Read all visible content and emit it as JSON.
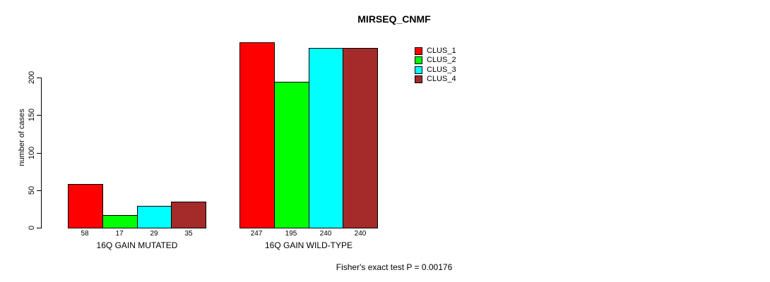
{
  "chart_data": {
    "type": "bar",
    "title": "MIRSEQ_CNMF",
    "ylabel": "number of cases",
    "ylim": [
      0,
      260
    ],
    "yticks": [
      0,
      50,
      100,
      150,
      200
    ],
    "grid": false,
    "legend_position": "top-right-outside",
    "categories": [
      "16Q GAIN MUTATED",
      "16Q GAIN WILD-TYPE"
    ],
    "series": [
      {
        "name": "CLUS_1",
        "color": "#FF0000",
        "values": [
          58,
          247
        ]
      },
      {
        "name": "CLUS_2",
        "color": "#00FF00",
        "values": [
          17,
          195
        ]
      },
      {
        "name": "CLUS_3",
        "color": "#00FFFF",
        "values": [
          29,
          240
        ]
      },
      {
        "name": "CLUS_4",
        "color": "#A52A2A",
        "values": [
          35,
          240
        ]
      }
    ],
    "show_value_labels": true,
    "annotation": "Fisher's exact test P = 0.00176"
  }
}
